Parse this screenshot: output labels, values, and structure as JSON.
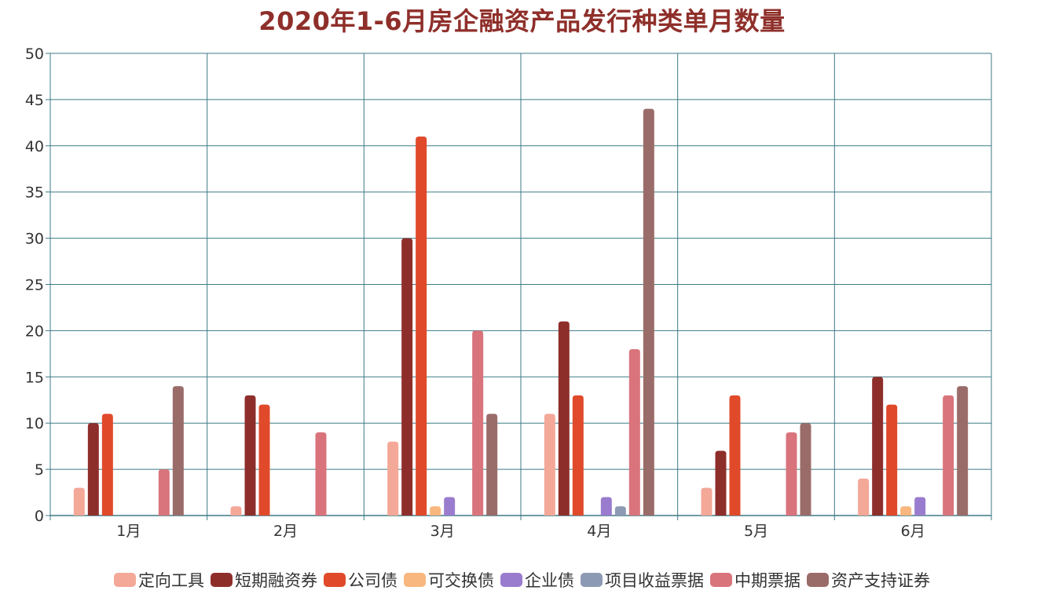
{
  "chart_data": {
    "type": "bar",
    "title": "2020年1-6月房企融资产品发行种类单月数量",
    "categories": [
      "1月",
      "2月",
      "3月",
      "4月",
      "5月",
      "6月"
    ],
    "ylim": [
      0,
      50
    ],
    "yticks": [
      "0",
      "5",
      "10",
      "15",
      "20",
      "25",
      "30",
      "35",
      "40",
      "45",
      "50"
    ],
    "grid": true,
    "legend_position": "bottom",
    "series": [
      {
        "name": "定向工具",
        "color": "#f4a898",
        "values": [
          3,
          1,
          8,
          11,
          3,
          4
        ]
      },
      {
        "name": "短期融资券",
        "color": "#8e2e2b",
        "values": [
          10,
          13,
          30,
          21,
          7,
          15
        ]
      },
      {
        "name": "公司债",
        "color": "#e04a2b",
        "values": [
          11,
          12,
          41,
          13,
          13,
          12
        ]
      },
      {
        "name": "可交换债",
        "color": "#f8b77e",
        "values": [
          0,
          0,
          1,
          0,
          0,
          1
        ]
      },
      {
        "name": "企业债",
        "color": "#9a7ccf",
        "values": [
          0,
          0,
          2,
          2,
          0,
          2
        ]
      },
      {
        "name": "项目收益票据",
        "color": "#8d9ab3",
        "values": [
          0,
          0,
          0,
          1,
          0,
          0
        ]
      },
      {
        "name": "中期票据",
        "color": "#d9747c",
        "values": [
          5,
          9,
          20,
          18,
          9,
          13
        ]
      },
      {
        "name": "资产支持证券",
        "color": "#9a6c69",
        "values": [
          14,
          0,
          11,
          44,
          10,
          14
        ]
      }
    ],
    "colors": {
      "grid": "#3d7a85",
      "title": "#8f2f2a"
    }
  }
}
